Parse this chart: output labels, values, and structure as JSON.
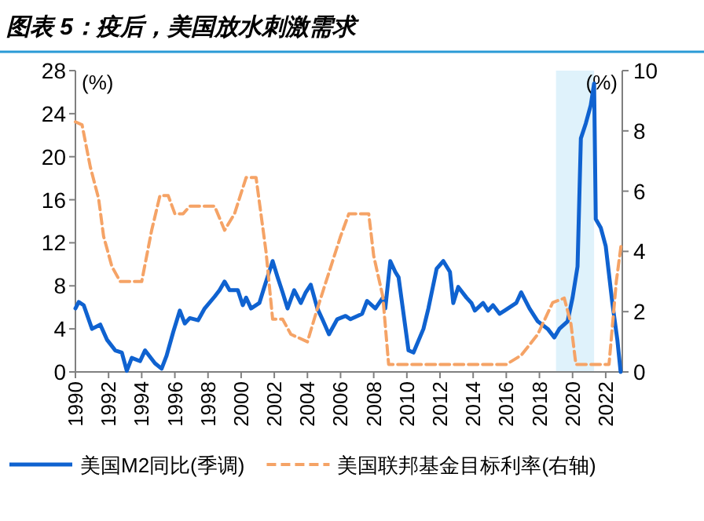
{
  "chart_data": {
    "type": "line",
    "title": "图表 5：疫后，美国放水刺激需求",
    "ylabel": "(%)",
    "y2label": "(%)",
    "xlim": [
      1990,
      2023
    ],
    "xticks": [
      1990,
      1992,
      1994,
      1996,
      1998,
      2000,
      2002,
      2004,
      2006,
      2008,
      2010,
      2012,
      2014,
      2016,
      2018,
      2020,
      2022
    ],
    "ylim": [
      0,
      28
    ],
    "yticks": [
      0,
      4,
      8,
      12,
      16,
      20,
      24,
      28
    ],
    "y2lim": [
      0,
      10
    ],
    "y2ticks": [
      0,
      2,
      4,
      6,
      8,
      10
    ],
    "grid": false,
    "legend": "bottom",
    "bands": [
      {
        "axis": "x",
        "from": 2019.0,
        "to": 2021.3,
        "color": "#dff2fb"
      }
    ],
    "series": [
      {
        "name": "美国M2同比(季调)",
        "color": "#0f62d0",
        "line_style": "solid",
        "x": [
          1990,
          1990.2,
          1990.5,
          1991,
          1991.5,
          1991.9,
          1992.4,
          1992.8,
          1993.1,
          1993.4,
          1993.9,
          1994.2,
          1994.8,
          1995.2,
          1995.5,
          1995.9,
          1996.3,
          1996.6,
          1996.9,
          1997.4,
          1997.8,
          1998.4,
          1998.7,
          1999,
          1999.3,
          1999.8,
          2000.1,
          2000.3,
          2000.6,
          2001.1,
          2001.4,
          2001.9,
          2002.2,
          2002.5,
          2002.8,
          2003.2,
          2003.6,
          2003.9,
          2004.2,
          2004.6,
          2004.9,
          2005.3,
          2005.8,
          2006.3,
          2006.6,
          2007.3,
          2007.6,
          2008.1,
          2008.55,
          2008.7,
          2009.0,
          2009.3,
          2009.5,
          2010.1,
          2010.4,
          2011.0,
          2011.3,
          2011.8,
          2012.2,
          2012.6,
          2012.8,
          2013.1,
          2013.6,
          2013.9,
          2014.1,
          2014.6,
          2014.9,
          2015.2,
          2015.6,
          2015.9,
          2016.6,
          2016.9,
          2017.4,
          2017.9,
          2018.5,
          2018.9,
          2019.2,
          2019.7,
          2020.0,
          2020.3,
          2020.5,
          2020.8,
          2021.1,
          2021.3,
          2021.4,
          2021.7,
          2022.0,
          2022.4,
          2022.7,
          2022.9
        ],
        "values": [
          5.9,
          6.5,
          6.2,
          4.0,
          4.4,
          3.0,
          2.0,
          1.8,
          0.1,
          1.3,
          1.0,
          2.0,
          0.8,
          0.3,
          1.5,
          3.7,
          5.7,
          4.5,
          5.0,
          4.8,
          5.9,
          7.0,
          7.6,
          8.4,
          7.6,
          7.6,
          6.2,
          6.9,
          5.9,
          6.4,
          7.9,
          10.3,
          8.8,
          7.4,
          5.9,
          7.6,
          6.4,
          7.4,
          8.1,
          5.9,
          4.9,
          3.5,
          4.9,
          5.2,
          4.9,
          5.4,
          6.6,
          5.9,
          6.9,
          5.9,
          10.3,
          9.3,
          8.8,
          2.0,
          1.8,
          4.0,
          5.9,
          9.6,
          10.3,
          9.3,
          6.4,
          7.9,
          6.9,
          6.4,
          5.7,
          6.4,
          5.7,
          6.2,
          5.4,
          5.7,
          6.4,
          7.4,
          5.9,
          4.7,
          4.0,
          3.2,
          4.0,
          4.7,
          6.9,
          9.8,
          21.7,
          23.1,
          24.8,
          26.8,
          14.2,
          13.4,
          11.7,
          6.4,
          3.0,
          0
        ]
      },
      {
        "name": "美国联邦基金目标利率(右轴)",
        "color": "#f5a366",
        "line_style": "dashed",
        "axis": "y2",
        "x": [
          1990,
          1990.4,
          1990.9,
          1991.4,
          1991.7,
          1992.2,
          1992.7,
          1994.0,
          1994.6,
          1995.1,
          1995.6,
          1996.0,
          1996.5,
          1996.9,
          1998.4,
          1999.0,
          1999.6,
          2000.3,
          2000.9,
          2001.5,
          2001.9,
          2002.5,
          2003.0,
          2004.0,
          2004.6,
          2006.0,
          2006.5,
          2007.7,
          2008.0,
          2008.55,
          2008.9,
          2016.0,
          2016.9,
          2017.9,
          2018.8,
          2019.5,
          2019.9,
          2020.2,
          2022.2,
          2022.64,
          2022.95
        ],
        "values": [
          8.3,
          8.2,
          6.8,
          5.75,
          4.5,
          3.5,
          3.0,
          3.0,
          4.7,
          5.85,
          5.85,
          5.25,
          5.25,
          5.5,
          5.5,
          4.7,
          5.25,
          6.45,
          6.45,
          4.0,
          1.75,
          1.75,
          1.25,
          1.0,
          2.1,
          4.5,
          5.25,
          5.25,
          3.85,
          2.5,
          0.25,
          0.25,
          0.55,
          1.25,
          2.3,
          2.45,
          1.6,
          0.25,
          0.25,
          3.0,
          4.3
        ]
      }
    ]
  }
}
